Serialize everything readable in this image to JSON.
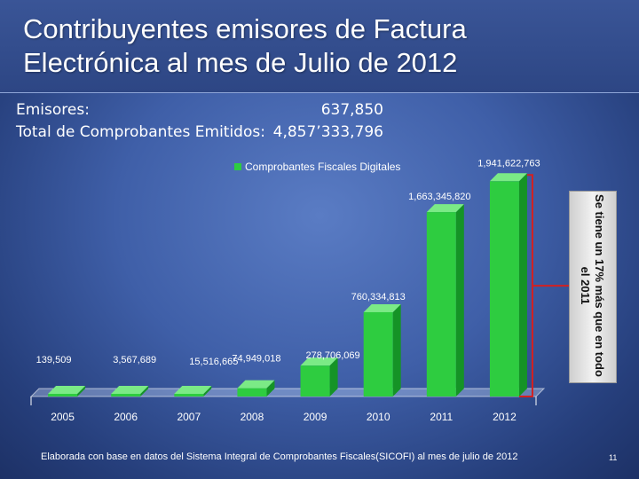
{
  "slide": {
    "title": "Contribuyentes emisores de Factura Electrónica al mes de Julio de 2012",
    "page_number": "11",
    "footer": "Elaborada con base en datos del Sistema Integral de Comprobantes Fiscales(SICOFI) al mes de  julio de 2012"
  },
  "stats": [
    {
      "label": "Emisores:",
      "value": "637,850"
    },
    {
      "label": "Total de Comprobantes Emitidos:",
      "value": "4,857’333,796"
    }
  ],
  "annotation": "Se tiene un 17% más que en todo el 2011",
  "colors": {
    "bar": "#2ecc40",
    "bar_dark": "#159326",
    "bar_top": "#7bea86",
    "bracket": "#d42020"
  },
  "chart_data": {
    "type": "bar",
    "title": "",
    "xlabel": "",
    "ylabel": "",
    "legend": "top",
    "grid": false,
    "categories": [
      "2005",
      "2006",
      "2007",
      "2008",
      "2009",
      "2010",
      "2011",
      "2012"
    ],
    "series": [
      {
        "name": "Comprobantes Fiscales Digitales",
        "values": [
          139509,
          3567689,
          15516665,
          74949018,
          278706069,
          760334813,
          1663345820,
          1941622763
        ],
        "labels": [
          "139,509",
          "3,567,689",
          "15,516,665",
          "74,949,018",
          "278,706,069",
          "760,334,813",
          "1,663,345,820",
          "1,941,622,763"
        ]
      }
    ],
    "ylim": [
      0,
      2000000000
    ]
  }
}
